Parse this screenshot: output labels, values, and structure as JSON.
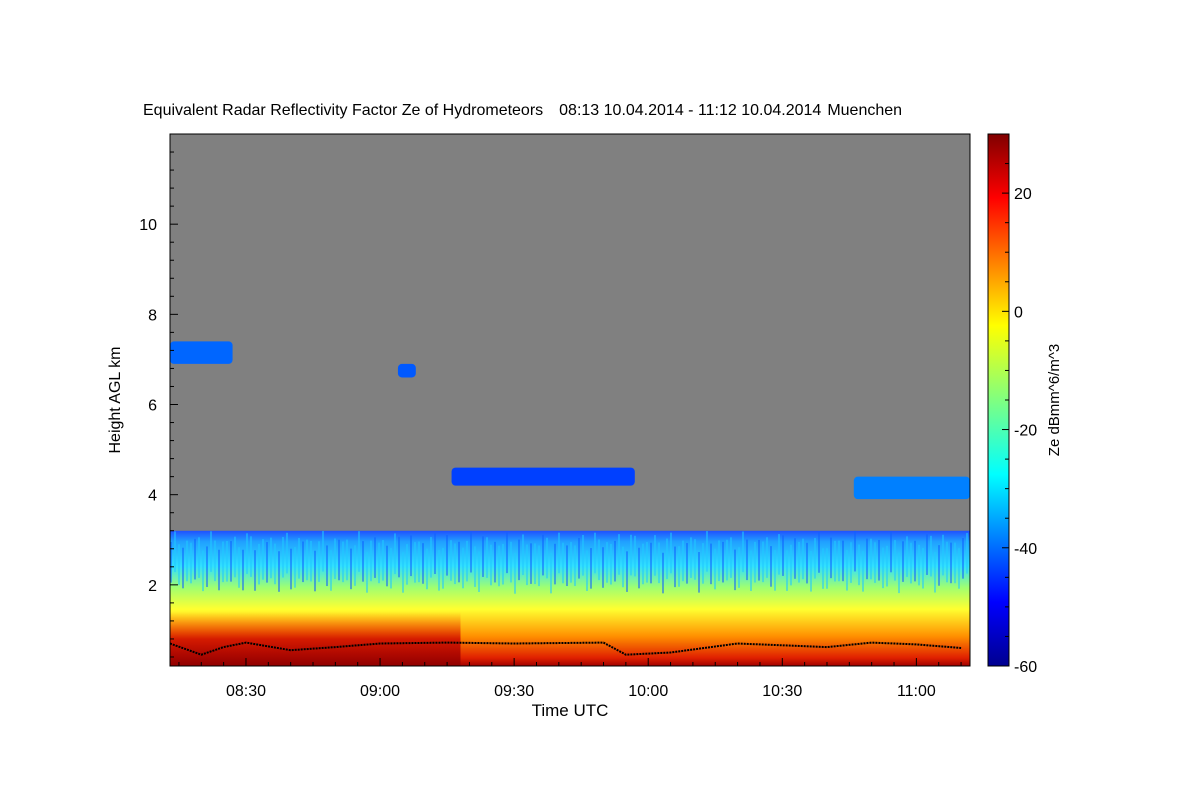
{
  "chart_data": {
    "type": "heatmap",
    "title": "Equivalent Radar Reflectivity Factor Ze of Hydrometeors",
    "period": "08:13 10.04.2014 - 11:12 10.04.2014",
    "location": "Muenchen",
    "xlabel": "Time UTC",
    "ylabel": "Height AGL km",
    "colorbar_label": "Ze dBmm^6/m^3",
    "x_ticks": [
      "08:30",
      "09:00",
      "09:30",
      "10:00",
      "10:30",
      "11:00"
    ],
    "y_ticks": [
      "2",
      "4",
      "6",
      "8",
      "10"
    ],
    "colorbar_ticks": [
      "20",
      "0",
      "-20",
      "-40",
      "-60"
    ],
    "xlim_minutes_utc": [
      493,
      672
    ],
    "ylim_km": [
      0.2,
      12
    ],
    "colorbar_range_dbz": [
      -60,
      30
    ],
    "background_color": "#808080",
    "features": [
      {
        "kind": "boundary-layer",
        "time_from": "08:13",
        "time_to": "11:12",
        "height_from_km": 0.2,
        "height_to_km": 3.2,
        "ze_top_dbz": -40,
        "ze_bottom_dbz": 28
      },
      {
        "kind": "cloud",
        "time_from": "08:13",
        "time_to": "08:27",
        "height_from_km": 6.9,
        "height_to_km": 7.4,
        "ze_dbz": -42
      },
      {
        "kind": "cloud",
        "time_from": "09:04",
        "time_to": "09:08",
        "height_from_km": 6.6,
        "height_to_km": 6.9,
        "ze_dbz": -43
      },
      {
        "kind": "cloud",
        "time_from": "09:16",
        "time_to": "09:57",
        "height_from_km": 4.2,
        "height_to_km": 4.6,
        "ze_dbz": -45
      },
      {
        "kind": "cloud",
        "time_from": "10:46",
        "time_to": "11:12",
        "height_from_km": 3.9,
        "height_to_km": 4.4,
        "ze_dbz": -40
      }
    ],
    "cloud_base_line": [
      {
        "t": "08:13",
        "h": 0.7
      },
      {
        "t": "08:20",
        "h": 0.45
      },
      {
        "t": "08:25",
        "h": 0.62
      },
      {
        "t": "08:30",
        "h": 0.72
      },
      {
        "t": "08:40",
        "h": 0.55
      },
      {
        "t": "08:50",
        "h": 0.62
      },
      {
        "t": "09:00",
        "h": 0.7
      },
      {
        "t": "09:15",
        "h": 0.72
      },
      {
        "t": "09:30",
        "h": 0.7
      },
      {
        "t": "09:50",
        "h": 0.72
      },
      {
        "t": "09:55",
        "h": 0.45
      },
      {
        "t": "10:05",
        "h": 0.5
      },
      {
        "t": "10:20",
        "h": 0.7
      },
      {
        "t": "10:40",
        "h": 0.62
      },
      {
        "t": "10:50",
        "h": 0.72
      },
      {
        "t": "11:00",
        "h": 0.68
      },
      {
        "t": "11:10",
        "h": 0.6
      }
    ]
  }
}
